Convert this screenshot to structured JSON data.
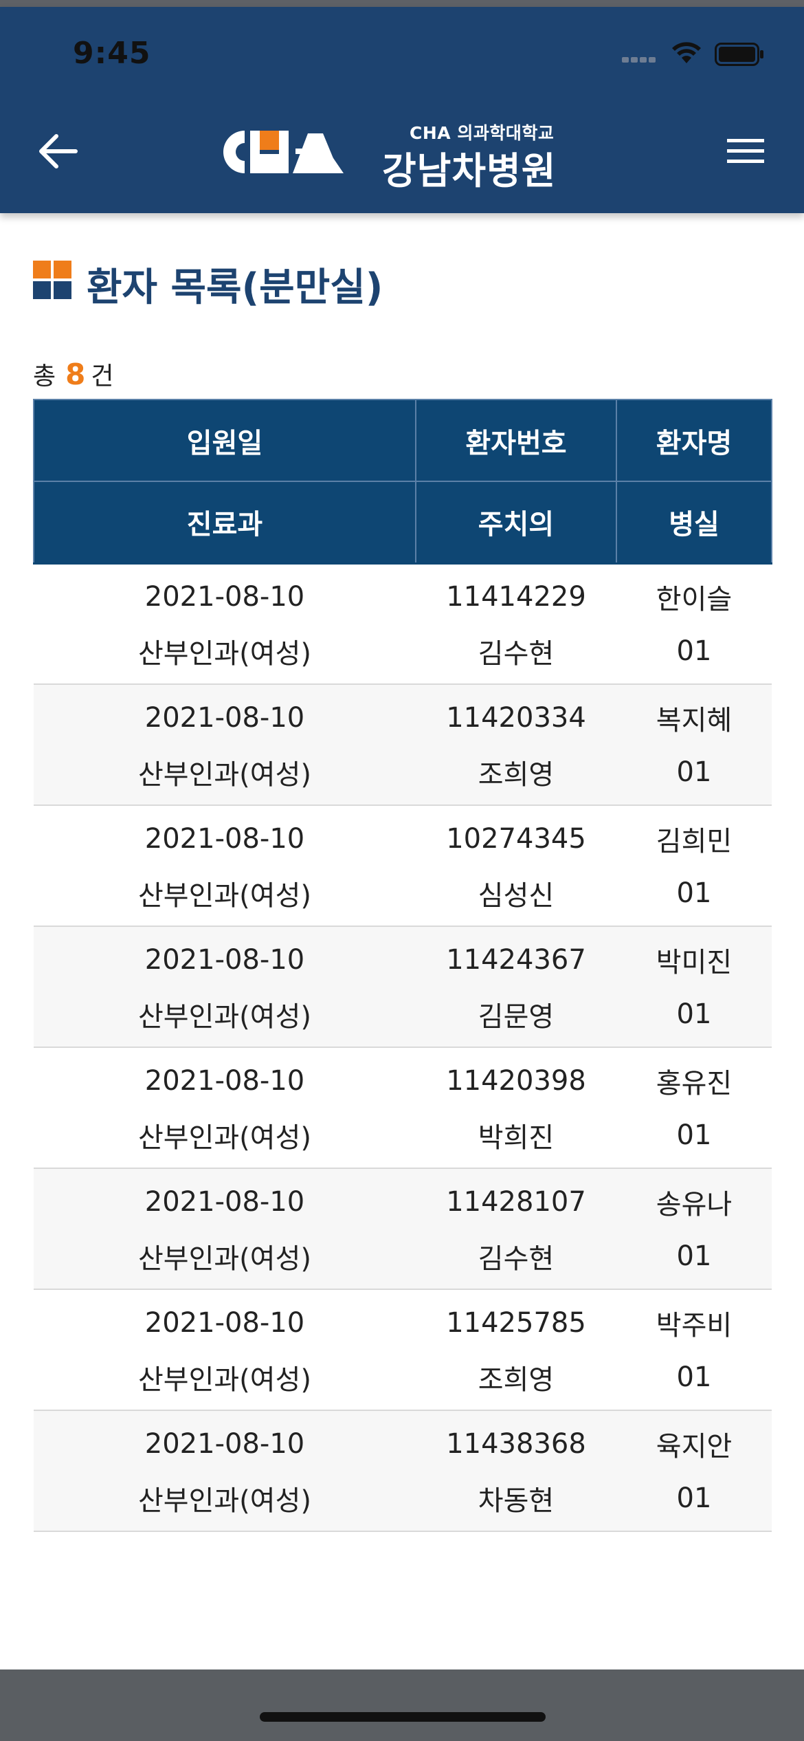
{
  "status_bar": {
    "time": "9:45"
  },
  "header": {
    "logo_sub": "CHA 의과학대학교",
    "logo_main": "강남차병원",
    "colors": {
      "bar": "#1d4370",
      "logo_orange": "#ef7d1a"
    }
  },
  "page": {
    "title": "환자 목록(분만실)",
    "count_prefix": "총",
    "count": "8",
    "count_suffix": "건"
  },
  "table": {
    "headers": {
      "admission_date": "입원일",
      "patient_no": "환자번호",
      "patient_name": "환자명",
      "department": "진료과",
      "attending": "주치의",
      "room": "병실"
    },
    "rows": [
      {
        "date": "2021-08-10",
        "id": "11414229",
        "name": "한이슬",
        "dept": "산부인과(여성)",
        "doctor": "김수현",
        "room": "01"
      },
      {
        "date": "2021-08-10",
        "id": "11420334",
        "name": "복지혜",
        "dept": "산부인과(여성)",
        "doctor": "조희영",
        "room": "01"
      },
      {
        "date": "2021-08-10",
        "id": "10274345",
        "name": "김희민",
        "dept": "산부인과(여성)",
        "doctor": "심성신",
        "room": "01"
      },
      {
        "date": "2021-08-10",
        "id": "11424367",
        "name": "박미진",
        "dept": "산부인과(여성)",
        "doctor": "김문영",
        "room": "01"
      },
      {
        "date": "2021-08-10",
        "id": "11420398",
        "name": "홍유진",
        "dept": "산부인과(여성)",
        "doctor": "박희진",
        "room": "01"
      },
      {
        "date": "2021-08-10",
        "id": "11428107",
        "name": "송유나",
        "dept": "산부인과(여성)",
        "doctor": "김수현",
        "room": "01"
      },
      {
        "date": "2021-08-10",
        "id": "11425785",
        "name": "박주비",
        "dept": "산부인과(여성)",
        "doctor": "조희영",
        "room": "01"
      },
      {
        "date": "2021-08-10",
        "id": "11438368",
        "name": "육지안",
        "dept": "산부인과(여성)",
        "doctor": "차동현",
        "room": "01"
      }
    ]
  }
}
